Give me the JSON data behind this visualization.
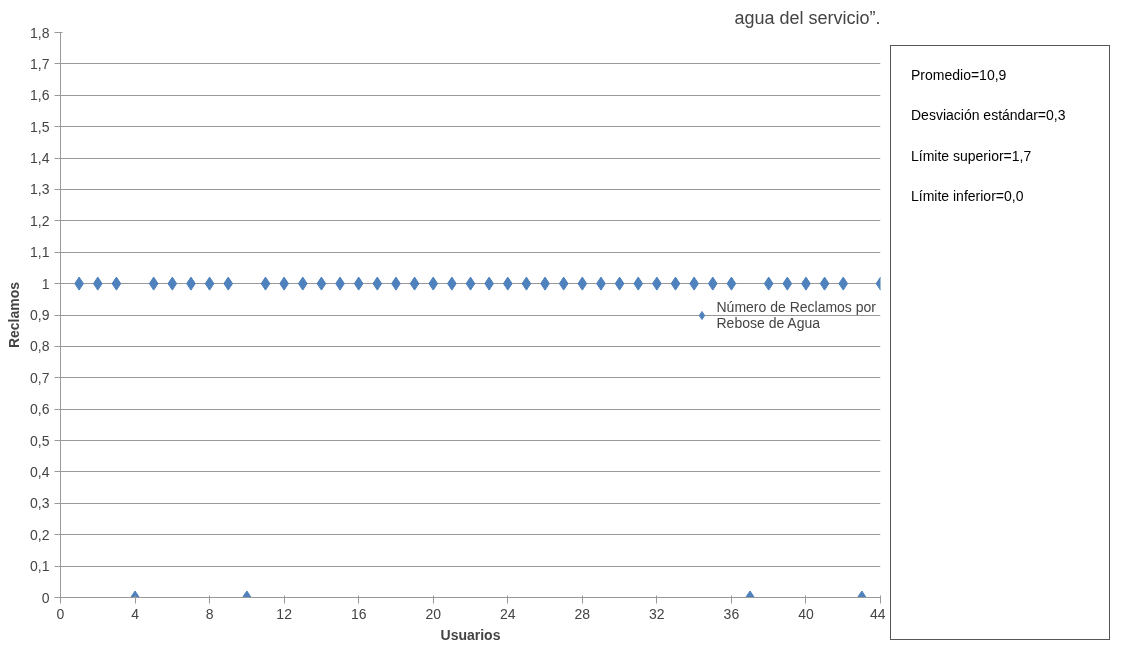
{
  "chart_data": {
    "type": "scatter",
    "title": "agua del servicio”.",
    "xlabel": "Usuarios",
    "ylabel": "Reclamos",
    "x": [
      1,
      2,
      3,
      4,
      5,
      6,
      7,
      8,
      9,
      10,
      11,
      12,
      13,
      14,
      15,
      16,
      17,
      18,
      19,
      20,
      21,
      22,
      23,
      24,
      25,
      26,
      27,
      28,
      29,
      30,
      31,
      32,
      33,
      34,
      35,
      36,
      37,
      38,
      39,
      40,
      41,
      42,
      43,
      44
    ],
    "series": [
      {
        "name": "Número de Reclamos por Rebose de Agua",
        "color": "#4f81bd",
        "values": [
          1,
          1,
          1,
          0,
          1,
          1,
          1,
          1,
          1,
          0,
          1,
          1,
          1,
          1,
          1,
          1,
          1,
          1,
          1,
          1,
          1,
          1,
          1,
          1,
          1,
          1,
          1,
          1,
          1,
          1,
          1,
          1,
          1,
          1,
          1,
          1,
          0,
          1,
          1,
          1,
          1,
          1,
          0,
          1
        ]
      }
    ],
    "xlim": [
      0,
      44
    ],
    "xticks": [
      0,
      4,
      8,
      12,
      16,
      20,
      24,
      28,
      32,
      36,
      40,
      44
    ],
    "ylim": [
      0,
      1.8
    ],
    "yticks": [
      {
        "value": 0,
        "label": "0"
      },
      {
        "value": 0.1,
        "label": "0,1"
      },
      {
        "value": 0.2,
        "label": "0,2"
      },
      {
        "value": 0.3,
        "label": "0,3"
      },
      {
        "value": 0.4,
        "label": "0,4"
      },
      {
        "value": 0.5,
        "label": "0,5"
      },
      {
        "value": 0.6,
        "label": "0,6"
      },
      {
        "value": 0.7,
        "label": "0,7"
      },
      {
        "value": 0.8,
        "label": "0,8"
      },
      {
        "value": 0.9,
        "label": "0,9"
      },
      {
        "value": 1,
        "label": "1"
      },
      {
        "value": 1.1,
        "label": "1,1"
      },
      {
        "value": 1.2,
        "label": "1,2"
      },
      {
        "value": 1.3,
        "label": "1,3"
      },
      {
        "value": 1.4,
        "label": "1,4"
      },
      {
        "value": 1.5,
        "label": "1,5"
      },
      {
        "value": 1.6,
        "label": "1,6"
      },
      {
        "value": 1.7,
        "label": "1,7"
      },
      {
        "value": 1.8,
        "label": "1,8"
      }
    ],
    "grid": "y",
    "legend": "right",
    "marker": "diamond",
    "annotations": [
      "Promedio=10,9",
      "Desviación estándar=0,3",
      "Límite superior=1,7",
      "Límite inferior=0,0"
    ]
  }
}
